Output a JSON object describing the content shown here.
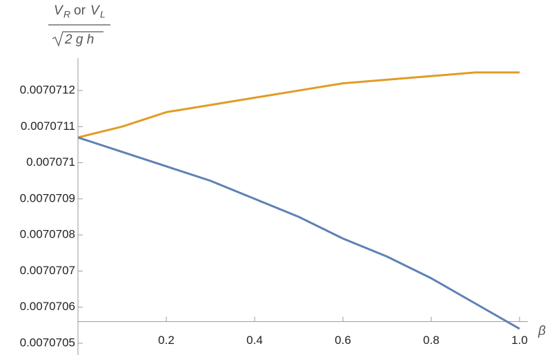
{
  "chart_data": {
    "type": "line",
    "ylabel": {
      "v1": "V",
      "sub1": "R",
      "or": "or",
      "v2": "V",
      "sub2": "L",
      "denominator": "2 g h"
    },
    "xlabel": "β",
    "x": [
      0,
      0.1,
      0.2,
      0.3,
      0.4,
      0.5,
      0.6,
      0.7,
      0.8,
      0.9,
      1
    ],
    "series": [
      {
        "color": "#e19c24",
        "values": [
          0.00707107,
          0.0070711,
          0.00707114,
          0.00707116,
          0.00707118,
          0.0070712,
          0.00707122,
          0.00707123,
          0.00707124,
          0.00707125,
          0.00707125
        ]
      },
      {
        "color": "#5e81b5",
        "values": [
          0.00707107,
          0.00707103,
          0.00707099,
          0.00707095,
          0.0070709,
          0.00707085,
          0.00707079,
          0.00707074,
          0.00707068,
          0.00707061,
          0.00707054
        ]
      }
    ],
    "xlim": [
      0,
      1
    ],
    "xticks": [
      0.2,
      0.4,
      0.6,
      0.8,
      {
        "value": 1,
        "label": "1.0"
      }
    ],
    "ylim": [
      0.0070705,
      0.00707129
    ],
    "yticks": [
      0.0070705,
      0.0070706,
      0.0070707,
      0.0070708,
      0.0070709,
      0.007071,
      0.0070711,
      0.0070712
    ],
    "x_axis_at": 0.00707056
  }
}
